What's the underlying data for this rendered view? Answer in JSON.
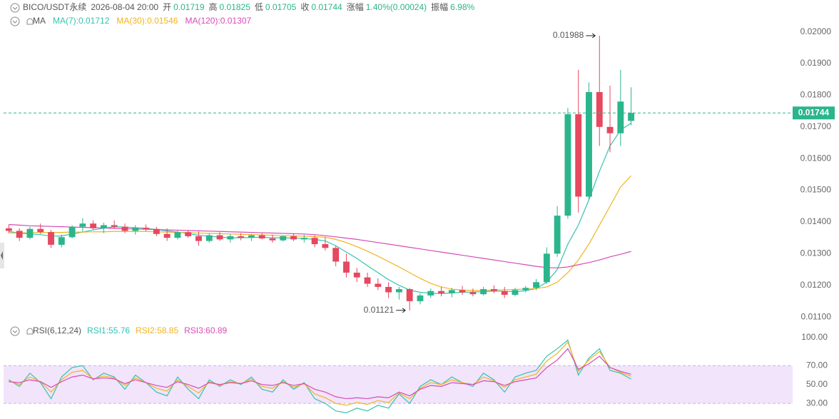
{
  "header": {
    "symbol": "BICO/USDT永续",
    "time": "2026-08-04 20:00",
    "open": "开",
    "high": "高",
    "low": "低",
    "close": "收",
    "change_label": "涨幅",
    "change": "1.40%(0.00024)",
    "amplitude_label": "振幅",
    "amplitude": "6.98%"
  },
  "chart_data": {
    "type": "candlestick",
    "ma_label": "MA",
    "up_color": "#2bb58c",
    "down_color": "#e5485f",
    "ylim": [
      0.0108,
      0.0206
    ],
    "yticks": [
      {
        "value": 0.011,
        "label": "0.01100"
      },
      {
        "value": 0.012,
        "label": "0.01200"
      },
      {
        "value": 0.013,
        "label": "0.01300"
      },
      {
        "value": 0.014,
        "label": "0.01400"
      },
      {
        "value": 0.015,
        "label": "0.01500"
      },
      {
        "value": 0.016,
        "label": "0.01600"
      },
      {
        "value": 0.017,
        "label": "0.01700"
      },
      {
        "value": 0.018,
        "label": "0.01800"
      },
      {
        "value": 0.019,
        "label": "0.01900"
      },
      {
        "value": 0.02,
        "label": "0.02000"
      }
    ],
    "ohlc": [
      [
        0.0138,
        0.01392,
        0.01365,
        0.01372
      ],
      [
        0.01372,
        0.0138,
        0.0134,
        0.0135
      ],
      [
        0.0135,
        0.01385,
        0.01345,
        0.01378
      ],
      [
        0.01378,
        0.01395,
        0.01362,
        0.01368
      ],
      [
        0.01368,
        0.01375,
        0.01318,
        0.01328
      ],
      [
        0.01328,
        0.0136,
        0.0132,
        0.01352
      ],
      [
        0.01352,
        0.0139,
        0.01348,
        0.01385
      ],
      [
        0.01385,
        0.01412,
        0.0137,
        0.01395
      ],
      [
        0.01395,
        0.01405,
        0.01375,
        0.0138
      ],
      [
        0.0138,
        0.01398,
        0.01365,
        0.0139
      ],
      [
        0.0139,
        0.01405,
        0.01378,
        0.01385
      ],
      [
        0.01385,
        0.01395,
        0.01365,
        0.01372
      ],
      [
        0.01372,
        0.0139,
        0.0136,
        0.01382
      ],
      [
        0.01382,
        0.01392,
        0.0137,
        0.01378
      ],
      [
        0.01378,
        0.01385,
        0.01355,
        0.01362
      ],
      [
        0.01362,
        0.0138,
        0.0134,
        0.0135
      ],
      [
        0.0135,
        0.01372,
        0.01345,
        0.01368
      ],
      [
        0.01368,
        0.01375,
        0.0135,
        0.01355
      ],
      [
        0.01355,
        0.0137,
        0.01325,
        0.0134
      ],
      [
        0.0134,
        0.01365,
        0.01335,
        0.01358
      ],
      [
        0.01358,
        0.01368,
        0.0134,
        0.01345
      ],
      [
        0.01345,
        0.01362,
        0.01335,
        0.01355
      ],
      [
        0.01355,
        0.01365,
        0.01342,
        0.0135
      ],
      [
        0.0135,
        0.01362,
        0.0134,
        0.01358
      ],
      [
        0.01358,
        0.01365,
        0.01345,
        0.01348
      ],
      [
        0.01348,
        0.0136,
        0.01335,
        0.01342
      ],
      [
        0.01342,
        0.01358,
        0.01338,
        0.01355
      ],
      [
        0.01355,
        0.01362,
        0.0134,
        0.01345
      ],
      [
        0.01345,
        0.0136,
        0.01335,
        0.0135
      ],
      [
        0.0135,
        0.01358,
        0.0132,
        0.0133
      ],
      [
        0.0133,
        0.01352,
        0.0131,
        0.01318
      ],
      [
        0.01318,
        0.01325,
        0.0126,
        0.01275
      ],
      [
        0.01275,
        0.013,
        0.01225,
        0.0124
      ],
      [
        0.0124,
        0.01255,
        0.0121,
        0.01225
      ],
      [
        0.01225,
        0.0124,
        0.01195,
        0.01205
      ],
      [
        0.01205,
        0.01222,
        0.01185,
        0.01195
      ],
      [
        0.01195,
        0.0121,
        0.0116,
        0.01178
      ],
      [
        0.01178,
        0.01195,
        0.01155,
        0.01188
      ],
      [
        0.01188,
        0.01192,
        0.01121,
        0.0115
      ],
      [
        0.0115,
        0.01175,
        0.0114,
        0.01168
      ],
      [
        0.01168,
        0.0119,
        0.0116,
        0.01182
      ],
      [
        0.01182,
        0.01195,
        0.01165,
        0.01175
      ],
      [
        0.01175,
        0.01192,
        0.01162,
        0.01185
      ],
      [
        0.01185,
        0.01198,
        0.0117,
        0.01178
      ],
      [
        0.01178,
        0.0119,
        0.01165,
        0.01172
      ],
      [
        0.01172,
        0.01195,
        0.01168,
        0.01188
      ],
      [
        0.01188,
        0.012,
        0.01175,
        0.01182
      ],
      [
        0.01182,
        0.01195,
        0.0116,
        0.0117
      ],
      [
        0.0117,
        0.01192,
        0.01165,
        0.01185
      ],
      [
        0.01185,
        0.01198,
        0.01178,
        0.01192
      ],
      [
        0.01192,
        0.0122,
        0.01185,
        0.0121
      ],
      [
        0.0121,
        0.0132,
        0.01205,
        0.013
      ],
      [
        0.013,
        0.0145,
        0.0129,
        0.0142
      ],
      [
        0.0142,
        0.0176,
        0.0141,
        0.0174
      ],
      [
        0.0174,
        0.0188,
        0.0143,
        0.0148
      ],
      [
        0.0148,
        0.0184,
        0.0147,
        0.0181
      ],
      [
        0.0181,
        0.01988,
        0.0164,
        0.017
      ],
      [
        0.017,
        0.0183,
        0.0162,
        0.0168
      ],
      [
        0.0168,
        0.0188,
        0.0164,
        0.0178
      ],
      [
        0.01719,
        0.01825,
        0.01705,
        0.01744
      ]
    ],
    "ma_series": [
      {
        "name": "MA(7):0.01712",
        "color": "#35c2b1",
        "values": [
          0.0137,
          0.01365,
          0.01362,
          0.0136,
          0.01355,
          0.01356,
          0.01362,
          0.01368,
          0.01375,
          0.0138,
          0.01385,
          0.01384,
          0.01382,
          0.0138,
          0.01376,
          0.01372,
          0.01368,
          0.01363,
          0.01358,
          0.01355,
          0.01352,
          0.0135,
          0.0135,
          0.01351,
          0.01352,
          0.0135,
          0.0135,
          0.01349,
          0.01348,
          0.01345,
          0.0134,
          0.01325,
          0.01305,
          0.01285,
          0.01262,
          0.0124,
          0.01218,
          0.012,
          0.01185,
          0.01178,
          0.01175,
          0.01174,
          0.01176,
          0.01178,
          0.01179,
          0.0118,
          0.01182,
          0.01181,
          0.0118,
          0.01183,
          0.0119,
          0.0121,
          0.0125,
          0.0133,
          0.0139,
          0.0147,
          0.0156,
          0.0164,
          0.0169,
          0.01712
        ]
      },
      {
        "name": "MA(30):0.01546",
        "color": "#f2b320",
        "values": [
          0.01365,
          0.01366,
          0.01366,
          0.01367,
          0.01367,
          0.01367,
          0.01368,
          0.01368,
          0.01369,
          0.01369,
          0.0137,
          0.0137,
          0.0137,
          0.0137,
          0.01369,
          0.01368,
          0.01367,
          0.01366,
          0.01365,
          0.01364,
          0.01363,
          0.01362,
          0.01361,
          0.0136,
          0.01359,
          0.01358,
          0.01357,
          0.01356,
          0.01355,
          0.01354,
          0.01352,
          0.01345,
          0.01335,
          0.01322,
          0.01308,
          0.01292,
          0.01275,
          0.01258,
          0.0124,
          0.01222,
          0.01206,
          0.01195,
          0.01188,
          0.01185,
          0.01184,
          0.01184,
          0.01185,
          0.01186,
          0.01187,
          0.01188,
          0.0119,
          0.01195,
          0.0121,
          0.0124,
          0.0128,
          0.0133,
          0.0139,
          0.0145,
          0.0151,
          0.01546
        ]
      },
      {
        "name": "MA(120):0.01307",
        "color": "#d84bb8",
        "values": [
          0.01392,
          0.0139,
          0.01388,
          0.01387,
          0.01386,
          0.01385,
          0.01384,
          0.01383,
          0.01382,
          0.01381,
          0.0138,
          0.01379,
          0.01378,
          0.01377,
          0.01376,
          0.01375,
          0.01374,
          0.01373,
          0.01372,
          0.01371,
          0.0137,
          0.01369,
          0.01368,
          0.01367,
          0.01366,
          0.01365,
          0.01364,
          0.01363,
          0.01362,
          0.0136,
          0.01357,
          0.01353,
          0.01349,
          0.01345,
          0.0134,
          0.01335,
          0.0133,
          0.01325,
          0.0132,
          0.01315,
          0.0131,
          0.01305,
          0.013,
          0.01295,
          0.0129,
          0.01285,
          0.0128,
          0.01275,
          0.0127,
          0.01265,
          0.0126,
          0.01256,
          0.01255,
          0.01258,
          0.01265,
          0.01272,
          0.0128,
          0.0129,
          0.01298,
          0.01307
        ]
      }
    ],
    "rsi": {
      "title": "RSI(6,12,24)",
      "ylim": [
        15,
        108
      ],
      "band": [
        30,
        70
      ],
      "band_color": "#f1e4fb",
      "yticks": [
        {
          "value": 30,
          "label": "30.00"
        },
        {
          "value": 50,
          "label": "50.00"
        },
        {
          "value": 70,
          "label": "70.00"
        },
        {
          "value": 100,
          "label": "100.00"
        }
      ],
      "series": [
        {
          "name": "RSI1:55.76",
          "color": "#35c2b1",
          "values": [
            55,
            48,
            62,
            52,
            35,
            58,
            68,
            70,
            55,
            62,
            58,
            45,
            60,
            52,
            42,
            38,
            58,
            45,
            35,
            55,
            48,
            55,
            50,
            58,
            45,
            42,
            55,
            45,
            52,
            35,
            30,
            22,
            20,
            25,
            22,
            28,
            25,
            40,
            30,
            48,
            55,
            50,
            58,
            52,
            48,
            62,
            55,
            42,
            58,
            62,
            65,
            80,
            88,
            97,
            60,
            78,
            88,
            65,
            62,
            55.76
          ]
        },
        {
          "name": "RSI2:58.85",
          "color": "#f2b320",
          "values": [
            54,
            50,
            58,
            53,
            42,
            55,
            63,
            65,
            56,
            59,
            57,
            49,
            57,
            52,
            46,
            43,
            55,
            48,
            41,
            53,
            49,
            53,
            51,
            56,
            48,
            46,
            53,
            47,
            51,
            40,
            36,
            30,
            28,
            31,
            29,
            33,
            31,
            41,
            35,
            46,
            52,
            50,
            55,
            52,
            50,
            58,
            54,
            47,
            55,
            58,
            61,
            75,
            83,
            95,
            64,
            76,
            85,
            68,
            63,
            58.85
          ]
        },
        {
          "name": "RSI3:60.89",
          "color": "#d84bb8",
          "values": [
            53,
            52,
            55,
            53,
            47,
            53,
            58,
            60,
            56,
            57,
            56,
            51,
            55,
            52,
            49,
            47,
            53,
            50,
            46,
            52,
            50,
            52,
            51,
            54,
            50,
            49,
            52,
            49,
            51,
            45,
            42,
            37,
            35,
            36,
            35,
            37,
            36,
            42,
            38,
            45,
            49,
            48,
            52,
            51,
            50,
            54,
            53,
            49,
            53,
            55,
            57,
            68,
            76,
            88,
            66,
            72,
            80,
            68,
            64,
            60.89
          ]
        }
      ]
    }
  }
}
